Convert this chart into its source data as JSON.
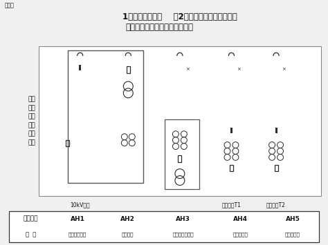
{
  "title_line1": "1、一路外供电源    （2）装有两台或以上变压器",
  "title_line2": "变压器一次侧采用单母线接线。",
  "header_label": "续上页",
  "left_label": "变压\n器一\n次侧\n电气\n主接\n线图",
  "bottom_label_ah1": "10kV进线",
  "bottom_label_ah4": "至变压器T1",
  "bottom_label_ah5": "至变压器T2",
  "tbl_headers": [
    "设备编号",
    "AH1",
    "AH2",
    "AH3",
    "AH4",
    "AH5"
  ],
  "tbl_row_label": "用  途",
  "tbl_row_vals": [
    "电源引入隔离",
    "电能计量",
    "电压测量＋主通",
    "变压器保护",
    "变压器保护"
  ],
  "bg": "#f0f0f0",
  "white": "#ffffff",
  "lc": "#2a2a2a",
  "tc": "#111111"
}
